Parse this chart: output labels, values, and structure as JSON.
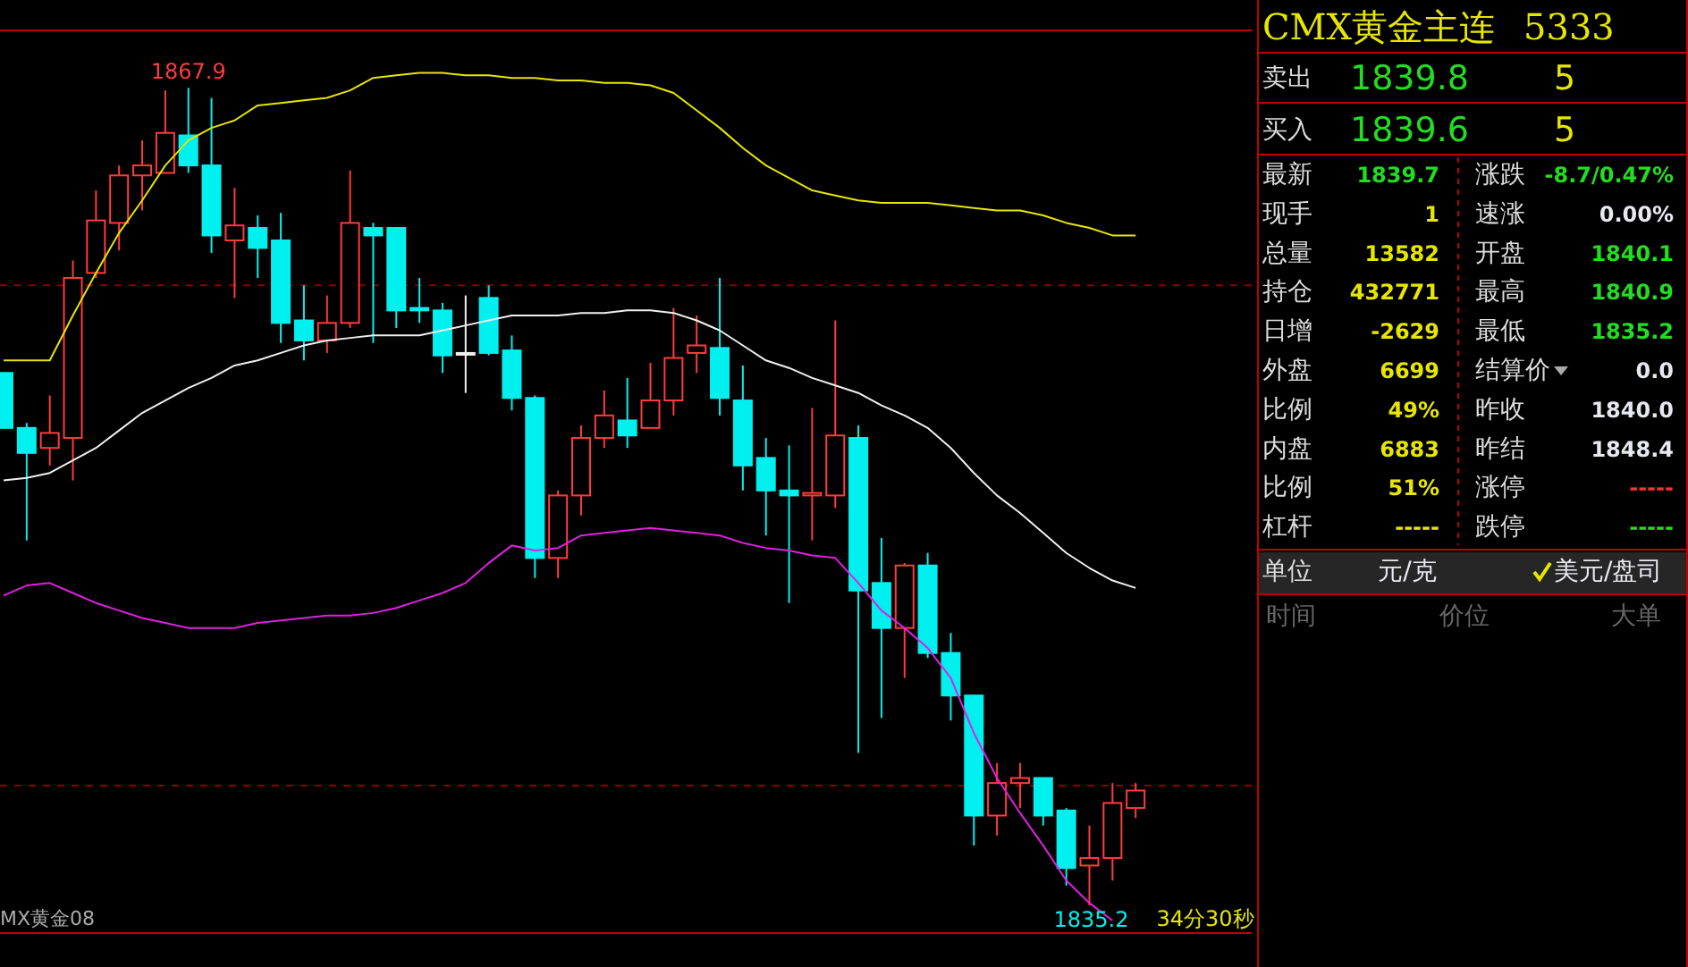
{
  "chart_data": [
    {
      "type": "candlestick",
      "categories": [
        null,
        null,
        null,
        null,
        null,
        null,
        null,
        null,
        null,
        null,
        null,
        null,
        null,
        null,
        null,
        null,
        null,
        null,
        null,
        null,
        null,
        null,
        null,
        null,
        null,
        null,
        null,
        null,
        null,
        null,
        null,
        null,
        null,
        null,
        null,
        null,
        null,
        null,
        null,
        null,
        null,
        null,
        null,
        null,
        null,
        null,
        null,
        null,
        null,
        null
      ],
      "ylim": [
        1834.1,
        1870.2
      ],
      "ohlc": [
        [
          1856.5,
          1856.5,
          1854.3,
          1854.3
        ],
        [
          1854.3,
          1854.5,
          1849.8,
          1853.3
        ],
        [
          1853.5,
          1855.6,
          1852.8,
          1854.1
        ],
        [
          1853.9,
          1861.0,
          1852.2,
          1860.3
        ],
        [
          1860.5,
          1863.8,
          1860.3,
          1862.6
        ],
        [
          1862.5,
          1864.8,
          1861.4,
          1864.4
        ],
        [
          1864.4,
          1865.8,
          1863.0,
          1864.8
        ],
        [
          1864.5,
          1867.8,
          1864.5,
          1866.1
        ],
        [
          1866.0,
          1867.9,
          1864.5,
          1864.8
        ],
        [
          1864.8,
          1867.5,
          1861.3,
          1862.0
        ],
        [
          1861.8,
          1863.9,
          1859.5,
          1862.4
        ],
        [
          1862.3,
          1862.8,
          1860.3,
          1861.5
        ],
        [
          1861.8,
          1862.9,
          1857.7,
          1858.5
        ],
        [
          1858.6,
          1860.0,
          1857.0,
          1857.8
        ],
        [
          1857.8,
          1859.6,
          1857.3,
          1858.5
        ],
        [
          1858.5,
          1864.6,
          1858.3,
          1862.5
        ],
        [
          1862.3,
          1862.5,
          1857.7,
          1862.0
        ],
        [
          1862.3,
          1862.3,
          1858.3,
          1859.0
        ],
        [
          1859.1,
          1860.3,
          1858.5,
          1859.0
        ],
        [
          1859.0,
          1859.3,
          1856.5,
          1857.2
        ],
        [
          1857.3,
          1859.6,
          1855.7,
          1857.3
        ],
        [
          1859.5,
          1860.0,
          1857.2,
          1857.3
        ],
        [
          1857.4,
          1858.0,
          1855.0,
          1855.5
        ],
        [
          1855.5,
          1855.6,
          1848.3,
          1849.1
        ],
        [
          1849.1,
          1851.8,
          1848.3,
          1851.6
        ],
        [
          1851.6,
          1854.4,
          1850.8,
          1853.9
        ],
        [
          1853.9,
          1855.8,
          1853.5,
          1854.8
        ],
        [
          1854.6,
          1856.3,
          1853.5,
          1854.0
        ],
        [
          1854.3,
          1856.9,
          1854.3,
          1855.4
        ],
        [
          1855.4,
          1859.1,
          1854.8,
          1857.1
        ],
        [
          1857.3,
          1858.8,
          1856.5,
          1857.6
        ],
        [
          1857.5,
          1860.3,
          1854.8,
          1855.5
        ],
        [
          1855.4,
          1856.8,
          1851.8,
          1852.8
        ],
        [
          1853.1,
          1853.9,
          1850.0,
          1851.8
        ],
        [
          1851.8,
          1853.6,
          1847.3,
          1851.6
        ],
        [
          1851.6,
          1855.1,
          1849.8,
          1851.7
        ],
        [
          1851.6,
          1858.6,
          1851.1,
          1854.0
        ],
        [
          1853.9,
          1854.4,
          1841.3,
          1847.8
        ],
        [
          1848.1,
          1849.9,
          1842.7,
          1846.3
        ],
        [
          1846.3,
          1848.9,
          1844.3,
          1848.8
        ],
        [
          1848.8,
          1849.3,
          1845.1,
          1845.3
        ],
        [
          1845.3,
          1846.1,
          1842.6,
          1843.6
        ],
        [
          1843.6,
          1843.6,
          1837.6,
          1838.8
        ],
        [
          1838.8,
          1840.9,
          1838.0,
          1840.1
        ],
        [
          1840.1,
          1840.9,
          1839.1,
          1840.3
        ],
        [
          1840.3,
          1840.3,
          1838.4,
          1838.8
        ],
        [
          1839.0,
          1839.1,
          1836.0,
          1836.7
        ],
        [
          1836.8,
          1838.4,
          1835.2,
          1837.1
        ],
        [
          1837.1,
          1840.1,
          1836.2,
          1839.3
        ],
        [
          1839.1,
          1840.1,
          1838.7,
          1839.8
        ]
      ],
      "series": [
        {
          "type": "line",
          "color": "#e6e600",
          "values": [
            1857.0,
            1857.0,
            1857.0,
            1858.8,
            1860.5,
            1862.1,
            1863.4,
            1864.8,
            1865.8,
            1866.3,
            1866.6,
            1867.2,
            1867.3,
            1867.4,
            1867.5,
            1867.8,
            1868.3,
            1868.4,
            1868.5,
            1868.5,
            1868.4,
            1868.4,
            1868.3,
            1868.3,
            1868.2,
            1868.2,
            1868.1,
            1868.1,
            1868.0,
            1867.7,
            1867.0,
            1866.3,
            1865.5,
            1864.8,
            1864.3,
            1863.8,
            1863.6,
            1863.4,
            1863.3,
            1863.3,
            1863.3,
            1863.2,
            1863.1,
            1863.0,
            1863.0,
            1862.8,
            1862.5,
            1862.3,
            1862.0,
            1862.0
          ]
        },
        {
          "type": "line",
          "color": "#f0f0f0",
          "values": [
            1852.2,
            1852.3,
            1852.5,
            1853.0,
            1853.5,
            1854.2,
            1854.9,
            1855.4,
            1855.9,
            1856.3,
            1856.8,
            1857.0,
            1857.3,
            1857.6,
            1857.8,
            1857.9,
            1858.0,
            1858.0,
            1858.0,
            1858.2,
            1858.4,
            1858.6,
            1858.8,
            1858.8,
            1858.8,
            1858.9,
            1858.9,
            1859.0,
            1859.0,
            1858.9,
            1858.6,
            1858.2,
            1857.6,
            1857.0,
            1856.7,
            1856.3,
            1856.0,
            1855.7,
            1855.2,
            1854.8,
            1854.3,
            1853.5,
            1852.5,
            1851.6,
            1850.9,
            1850.1,
            1849.3,
            1848.7,
            1848.2,
            1847.9
          ]
        },
        {
          "type": "line",
          "color": "#e020e0",
          "values": [
            1847.6,
            1848.0,
            1848.1,
            1847.7,
            1847.3,
            1847.0,
            1846.7,
            1846.5,
            1846.3,
            1846.3,
            1846.3,
            1846.5,
            1846.6,
            1846.7,
            1846.8,
            1846.8,
            1846.9,
            1847.1,
            1847.4,
            1847.7,
            1848.1,
            1848.9,
            1849.6,
            1849.4,
            1849.5,
            1850.0,
            1850.1,
            1850.2,
            1850.3,
            1850.2,
            1850.1,
            1850.0,
            1849.7,
            1849.5,
            1849.4,
            1849.2,
            1849.1,
            1848.1,
            1847.0,
            1846.3,
            1845.5,
            1844.3,
            1842.1,
            1840.3,
            1838.9,
            1837.6,
            1836.2,
            1835.3,
            1834.6,
            null
          ]
        }
      ],
      "ref_lines": [
        {
          "axis": "y",
          "value": 1860,
          "color": "#8b0000",
          "line_style": "dashed"
        },
        {
          "axis": "y",
          "value": 1840,
          "color": "#8b0000",
          "line_style": "dashed"
        }
      ],
      "annotations": [
        {
          "text": "1867.9",
          "y": 1867.9
        },
        {
          "text": "1835.2",
          "y": 1835.2
        },
        "MX黄金08",
        "34分30秒"
      ]
    },
    {
      "type": "other",
      "title": "CMX黄金主连",
      "subtitle": "5333",
      "annotations": [
        "卖出",
        "1839.8",
        "5",
        "买入",
        "1839.6",
        "5",
        "最新",
        "1839.7",
        "涨跌",
        "-8.7/0.47%",
        "现手",
        "1",
        "速涨",
        "0.00%",
        "总量",
        "13582",
        "开盘",
        "1840.1",
        "持仓",
        "432771",
        "最高",
        "1840.9",
        "日增",
        "-2629",
        "最低",
        "1835.2",
        "外盘",
        "6699",
        "结算价",
        "0.0",
        "比例",
        "49%",
        "昨收",
        "1840.0",
        "内盘",
        "6883",
        "昨结",
        "1848.4",
        "比例",
        "51%",
        "涨停",
        "-----",
        "杠杆",
        "-----",
        "跌停",
        "-----",
        "单位",
        "元/克",
        "美元/盘司",
        "时间",
        "价位",
        "大单"
      ]
    }
  ]
}
